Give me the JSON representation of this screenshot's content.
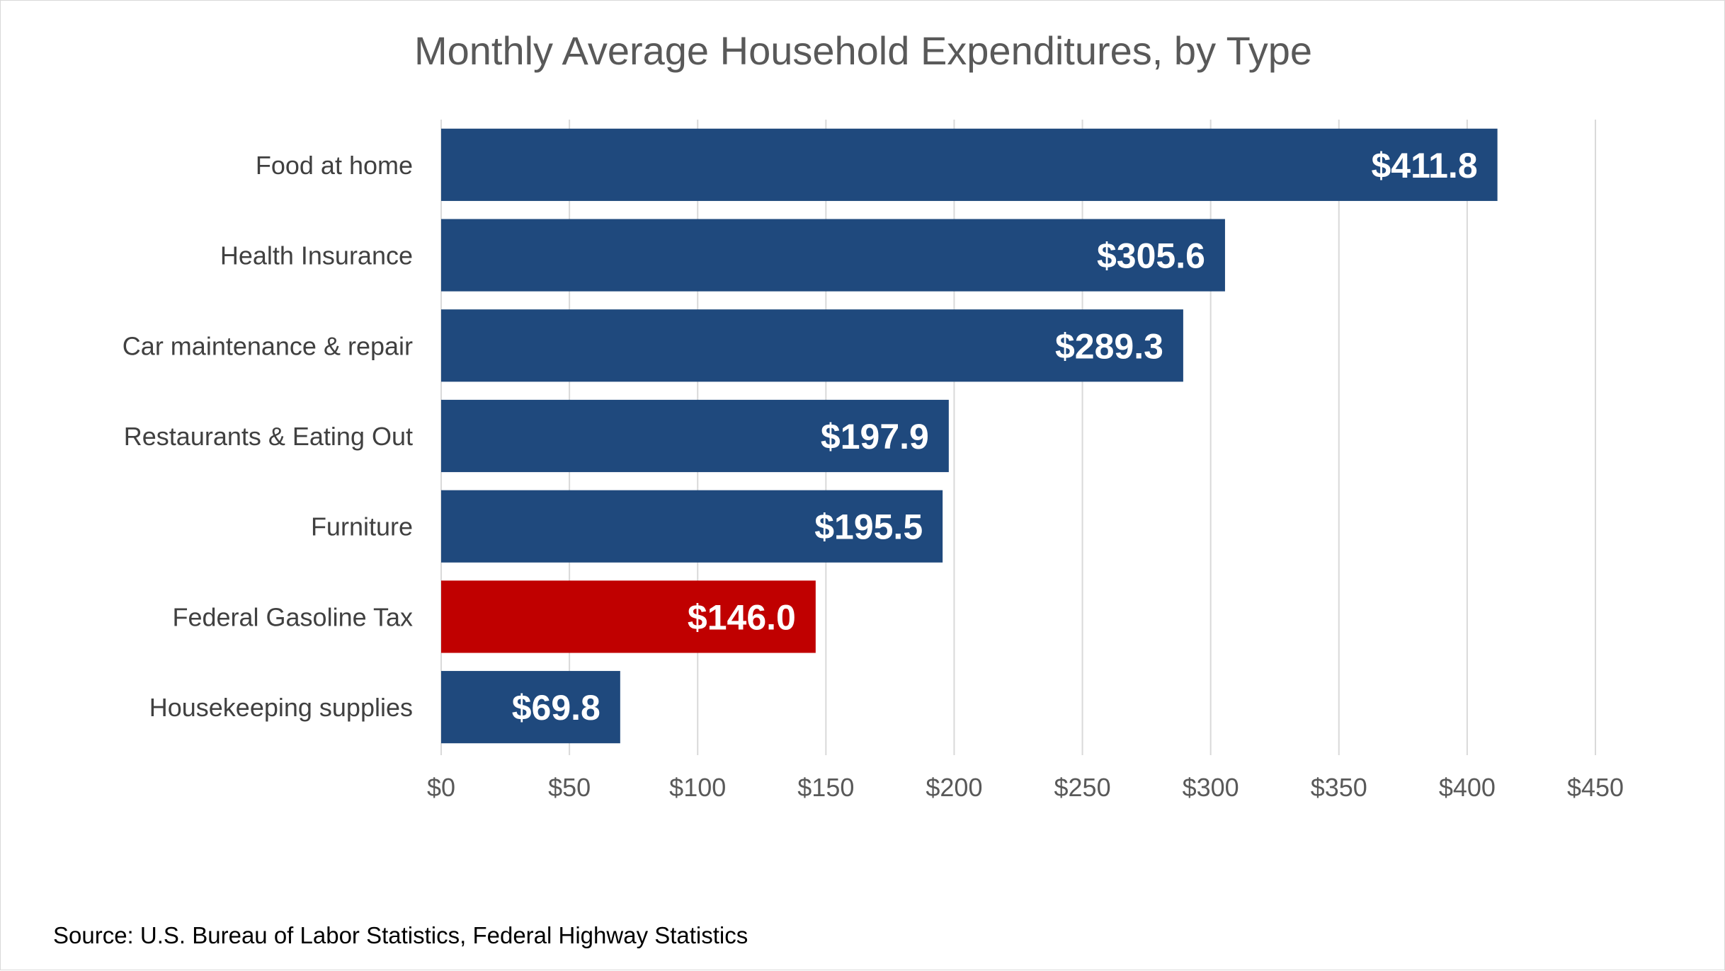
{
  "chart_data": {
    "type": "bar",
    "orientation": "horizontal",
    "title": "Monthly Average Household Expenditures, by Type",
    "categories": [
      "Food at home",
      "Health Insurance",
      "Car maintenance & repair",
      "Restaurants & Eating Out",
      "Furniture",
      "Federal Gasoline Tax",
      "Housekeeping supplies"
    ],
    "values": [
      411.8,
      305.6,
      289.3,
      197.9,
      195.5,
      146.0,
      69.8
    ],
    "data_labels": [
      "$411.8",
      "$305.6",
      "$289.3",
      "$197.9",
      "$195.5",
      "$146.0",
      "$69.8"
    ],
    "bar_colors": [
      "#1f497d",
      "#1f497d",
      "#1f497d",
      "#1f497d",
      "#1f497d",
      "#c00000",
      "#1f497d"
    ],
    "xlim": [
      0,
      450
    ],
    "x_ticks": [
      0,
      50,
      100,
      150,
      200,
      250,
      300,
      350,
      400,
      450
    ],
    "x_tick_labels": [
      "$0",
      "$50",
      "$100",
      "$150",
      "$200",
      "$250",
      "$300",
      "$350",
      "$400",
      "$450"
    ],
    "xlabel": "",
    "ylabel": "",
    "grid": true,
    "legend": "none",
    "source": "Source: U.S. Bureau of Labor Statistics, Federal Highway Statistics"
  },
  "colors": {
    "bar_default": "#1f497d",
    "bar_highlight": "#c00000",
    "grid": "#d9d9d9",
    "title": "#595959"
  }
}
